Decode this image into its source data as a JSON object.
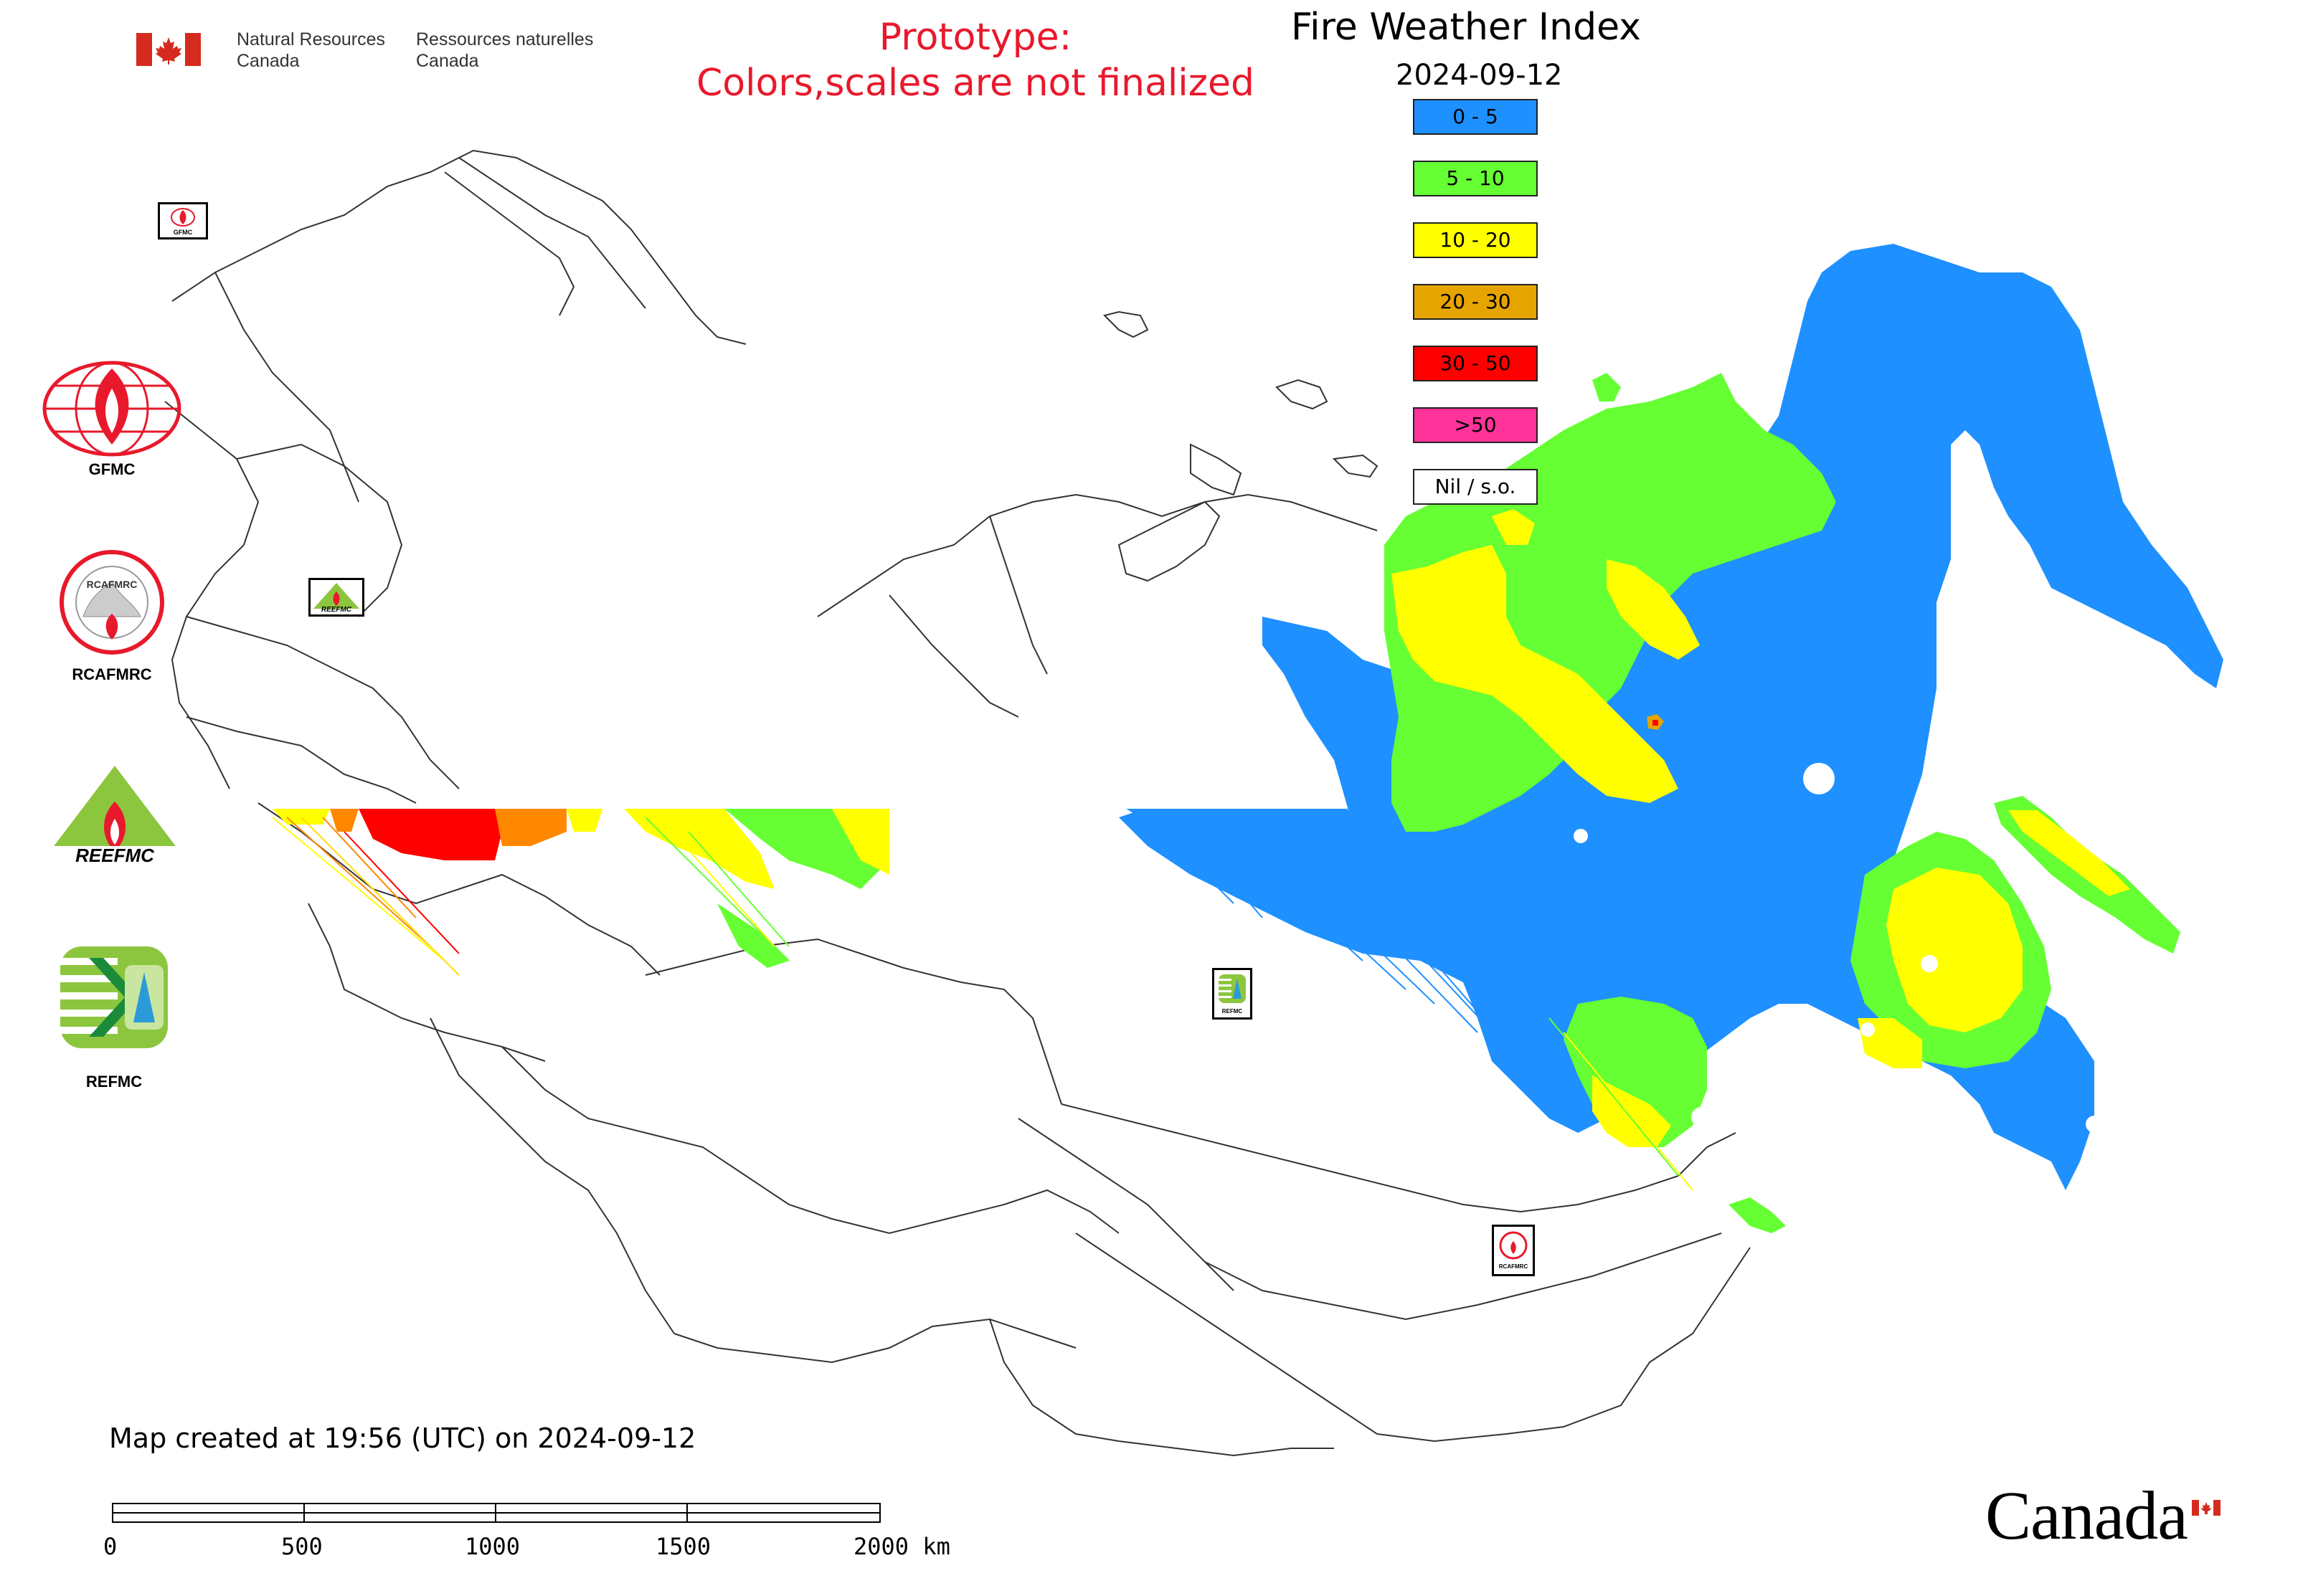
{
  "header": {
    "org_en_line1": "Natural Resources",
    "org_en_line2": "Canada",
    "org_fr_line1": "Ressources naturelles",
    "org_fr_line2": "Canada",
    "prototype_line1": "Prototype:",
    "prototype_line2": "Colors,scales are not finalized"
  },
  "map_title": "Fire Weather Index",
  "map_date": "2024-09-12",
  "legend": [
    {
      "label": "0 - 5",
      "color": "#1e90ff"
    },
    {
      "label": "5 - 10",
      "color": "#66ff33"
    },
    {
      "label": "10 - 20",
      "color": "#ffff00"
    },
    {
      "label": "20 - 30",
      "color": "#e6a400"
    },
    {
      "label": "30 - 50",
      "color": "#ff0000"
    },
    {
      "label": ">50",
      "color": "#ff3399"
    },
    {
      "label": "Nil / s.o.",
      "color": "#ffffff"
    }
  ],
  "logos": [
    {
      "caption": "GFMC",
      "icon": "gfmc-logo"
    },
    {
      "caption": "RCAFMRC",
      "icon": "rcafmrc-logo"
    },
    {
      "caption": "",
      "icon": "reefmc-logo",
      "text": "REEFMC"
    },
    {
      "caption": "REFMC",
      "icon": "refmc-logo"
    }
  ],
  "map_markers": {
    "gfmc": "GFMC",
    "reefmc": "REEFMC",
    "refmc": "REFMC",
    "rcafmrc": "RCAFMRC"
  },
  "footer": {
    "created": "Map created at 19:56 (UTC) on 2024-09-12",
    "scale_labels": [
      "0",
      "500",
      "1000",
      "1500",
      "2000 km"
    ],
    "wordmark": "Canada"
  },
  "colors": {
    "accent_red": "#e8192c",
    "flag_red": "#d52b1e"
  }
}
